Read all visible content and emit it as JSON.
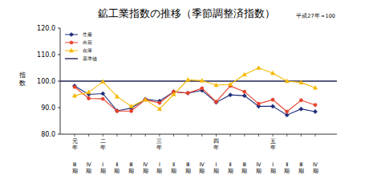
{
  "chart_data": {
    "type": "line",
    "title": "鉱工業指数の推移（季節調整済指数）",
    "subtitle": "平成27年＝100",
    "y_label": "指数",
    "categories": [
      "Ⅲ期",
      "Ⅳ期",
      "Ⅰ期",
      "Ⅱ期",
      "Ⅲ期",
      "Ⅳ期",
      "Ⅰ期",
      "Ⅱ期",
      "Ⅲ期",
      "Ⅳ期",
      "Ⅰ期",
      "Ⅱ期",
      "Ⅲ期",
      "Ⅳ期",
      "Ⅰ期",
      "Ⅱ期",
      "Ⅲ期",
      "Ⅳ期"
    ],
    "category_groups": [
      "元年",
      null,
      "二年",
      null,
      null,
      null,
      "三年",
      null,
      null,
      null,
      "四年",
      null,
      null,
      null,
      "五年",
      null,
      null,
      null
    ],
    "series": [
      {
        "name": "生産",
        "color": "#1f2d7a",
        "marker": "diamond",
        "values": [
          98.2,
          95.0,
          95.3,
          88.8,
          89.8,
          93.2,
          92.5,
          96.0,
          95.5,
          96.5,
          92.0,
          94.8,
          94.5,
          90.5,
          90.5,
          87.2,
          89.5,
          88.5
        ]
      },
      {
        "name": "出荷",
        "color": "#e8402a",
        "marker": "circle",
        "values": [
          97.8,
          93.5,
          93.3,
          88.7,
          88.7,
          93.0,
          91.8,
          96.0,
          95.5,
          97.3,
          92.2,
          98.2,
          96.0,
          91.5,
          93.0,
          88.5,
          92.8,
          91.0
        ]
      },
      {
        "name": "在庫",
        "color": "#f5b800",
        "marker": "triangle",
        "values": [
          94.5,
          95.8,
          99.8,
          94.2,
          90.5,
          93.0,
          89.5,
          95.0,
          100.5,
          100.2,
          98.5,
          98.8,
          102.5,
          105.0,
          103.0,
          100.0,
          99.5,
          97.5
        ]
      }
    ],
    "reference_line": {
      "name": "基準値",
      "value": 100,
      "color": "#222255"
    },
    "ylim": [
      80,
      120
    ],
    "yticks": [
      {
        "value": 80,
        "label": "80.0"
      },
      {
        "value": 90,
        "label": "90.0"
      },
      {
        "value": 100,
        "label": "100.0"
      },
      {
        "value": 110,
        "label": "110.0"
      },
      {
        "value": 120,
        "label": "120.0"
      }
    ],
    "grid": false,
    "legend": "top-left"
  }
}
